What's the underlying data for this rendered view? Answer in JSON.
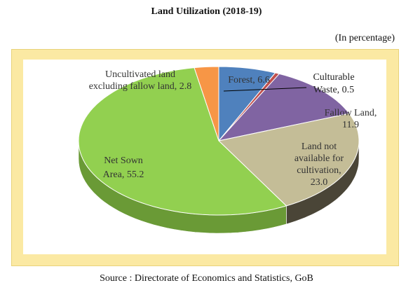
{
  "page": {
    "title": "Land Utilization (2018-19)",
    "unit_note": "(In percentage)",
    "source": "Source : Directorate of Economics and Statistics, GoB"
  },
  "chart_data": {
    "type": "pie",
    "title": "Land Utilization (2018-19)",
    "style": "3d",
    "slices": [
      {
        "label": "Forest",
        "value": 6.6,
        "color": "#4f81bd",
        "side": "#3b6496",
        "label_text": "Forest, 6.6"
      },
      {
        "label": "Culturable Waste",
        "value": 0.5,
        "color": "#c0504d",
        "side": "#8f3a38",
        "label_text": "Culturable Waste, 0.5"
      },
      {
        "label": "Fallow Land",
        "value": 11.9,
        "color": "#8064a2",
        "side": "#5e4a78",
        "label_text": "Fallow Land, 11.9"
      },
      {
        "label": "Land not available for cultivation",
        "value": 23.0,
        "color": "#c4bd97",
        "side": "#4a4537",
        "label_text": "Land not available for cultivation, 23.0"
      },
      {
        "label": "Net Sown Area",
        "value": 55.2,
        "color": "#92d050",
        "side": "#6a9a36",
        "label_text": "Net Sown Area, 55.2"
      },
      {
        "label": "Uncultivated land excluding fallow land",
        "value": 2.8,
        "color": "#f79646",
        "side": "#b96b2c",
        "label_text": "Uncultivated land excluding fallow land, 2.8"
      }
    ],
    "label_lines": {
      "forest": [
        "Forest, 6.6"
      ],
      "culturable": [
        "Culturable",
        "Waste, 0.5"
      ],
      "fallow": [
        "Fallow Land,",
        "11.9"
      ],
      "notavail": [
        "Land not",
        "available for",
        "cultivation,",
        "23.0"
      ],
      "netsown": [
        "Net Sown",
        "Area, 55.2"
      ],
      "uncult": [
        "Uncultivated land",
        "excluding fallow land, 2.8"
      ]
    }
  }
}
